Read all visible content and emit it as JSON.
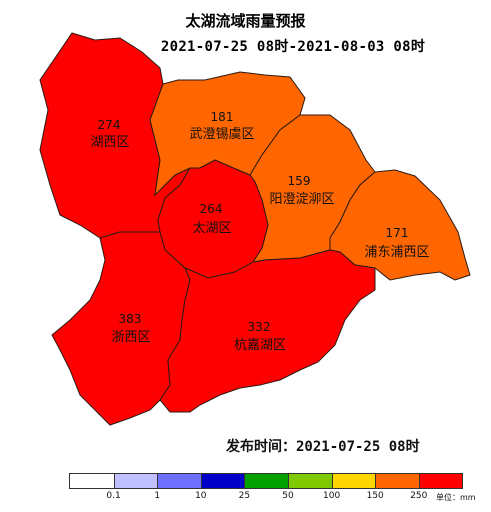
{
  "header": {
    "title": "太湖流域雨量预报",
    "period": "2021-07-25 08时-2021-08-03 08时"
  },
  "issue_time": "发布时间：2021-07-25 08时",
  "regions": [
    {
      "id": "huxi",
      "name": "湖西区",
      "value": "274",
      "color": "#ff0000"
    },
    {
      "id": "wucheng",
      "name": "武澄锡虞区",
      "value": "181",
      "color": "#ff6600"
    },
    {
      "id": "yangcheng",
      "name": "阳澄淀泖区",
      "value": "159",
      "color": "#ff6600"
    },
    {
      "id": "taihu",
      "name": "太湖区",
      "value": "264",
      "color": "#ff0000"
    },
    {
      "id": "pudong",
      "name": "浦东浦西区",
      "value": "171",
      "color": "#ff6600"
    },
    {
      "id": "zhexi",
      "name": "浙西区",
      "value": "383",
      "color": "#ff0000"
    },
    {
      "id": "hangjiahu",
      "name": "杭嘉湖区",
      "value": "332",
      "color": "#ff0000"
    }
  ],
  "legend": {
    "colors": [
      "#ffffff",
      "#c0c0ff",
      "#7070ff",
      "#0000c8",
      "#00a000",
      "#80c800",
      "#ffd700",
      "#ff6600",
      "#ff0000"
    ],
    "ticks": [
      "0.1",
      "1",
      "10",
      "25",
      "50",
      "100",
      "150",
      "250"
    ],
    "unit": "单位：mm"
  }
}
